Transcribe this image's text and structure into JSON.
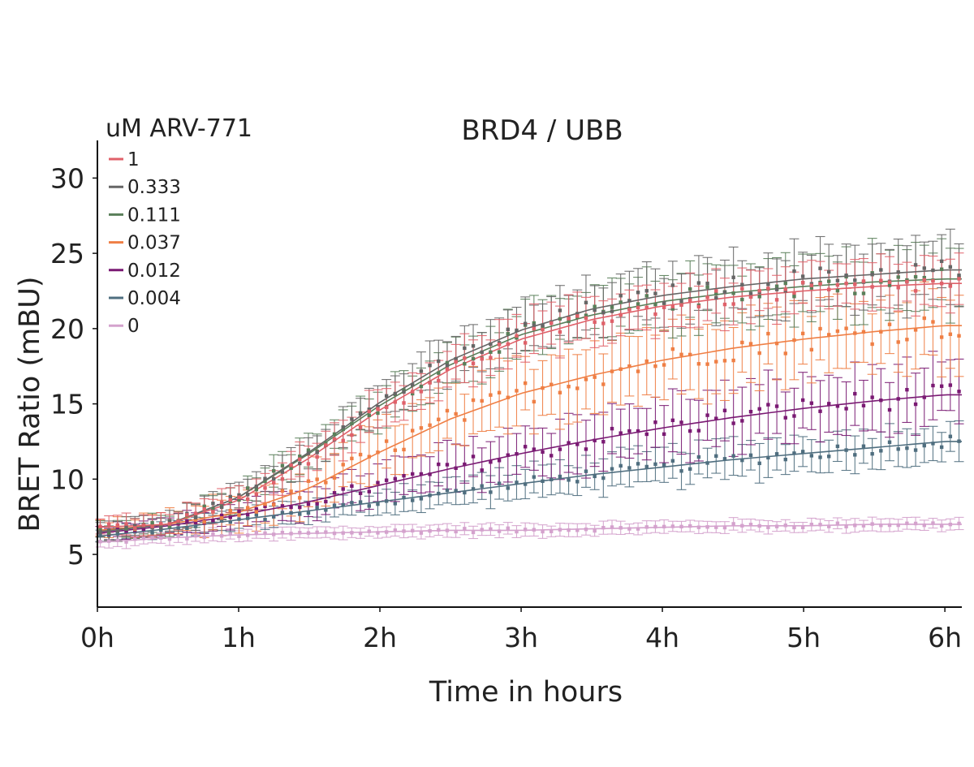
{
  "chart_data": {
    "type": "scatter",
    "title": "BRD4 / UBB",
    "xlabel": "Time in hours",
    "ylabel": "BRET Ratio (mBU)",
    "xlim": [
      0,
      6.12
    ],
    "ylim": [
      1.5,
      32.5
    ],
    "x_ticks": [
      {
        "value": 0,
        "label": "0h"
      },
      {
        "value": 1,
        "label": "1h"
      },
      {
        "value": 2,
        "label": "2h"
      },
      {
        "value": 3,
        "label": "3h"
      },
      {
        "value": 4,
        "label": "4h"
      },
      {
        "value": 5,
        "label": "5h"
      },
      {
        "value": 6,
        "label": "6h"
      }
    ],
    "y_ticks": [
      {
        "value": 5,
        "label": "5"
      },
      {
        "value": 10,
        "label": "10"
      },
      {
        "value": 15,
        "label": "15"
      },
      {
        "value": 20,
        "label": "20"
      },
      {
        "value": 25,
        "label": "25"
      },
      {
        "value": 30,
        "label": "30"
      }
    ],
    "grid": false,
    "legend": {
      "title": "uM ARV-771",
      "position": "top-left"
    },
    "error_bars": true,
    "fit_curves": true,
    "series": [
      {
        "name": "1",
        "color": "#e0616a",
        "fit": [
          6.8,
          7.0,
          8.6,
          11.4,
          14.6,
          17.3,
          19.3,
          20.6,
          21.5,
          22.1,
          22.5,
          22.8,
          23.0
        ],
        "err": [
          0.6,
          0.7,
          0.9,
          1.1,
          1.3,
          1.4,
          1.5,
          1.5,
          1.6,
          1.6,
          1.6,
          1.6,
          1.6
        ]
      },
      {
        "name": "0.333",
        "color": "#666666",
        "fit": [
          6.5,
          7.0,
          8.8,
          11.8,
          15.1,
          17.9,
          19.9,
          21.3,
          22.2,
          22.8,
          23.3,
          23.6,
          23.9
        ],
        "err": [
          0.6,
          0.7,
          0.9,
          1.1,
          1.3,
          1.5,
          1.6,
          1.7,
          1.8,
          1.9,
          2.0,
          2.1,
          2.2
        ]
      },
      {
        "name": "0.111",
        "color": "#5a7f5a",
        "fit": [
          6.5,
          7.0,
          8.8,
          11.7,
          14.9,
          17.6,
          19.6,
          20.9,
          21.8,
          22.4,
          22.8,
          23.1,
          23.3
        ],
        "err": [
          0.6,
          0.7,
          0.9,
          1.1,
          1.3,
          1.5,
          1.6,
          1.7,
          1.8,
          1.9,
          2.0,
          2.1,
          2.2
        ]
      },
      {
        "name": "0.037",
        "color": "#ef7f45",
        "fit": [
          6.6,
          7.0,
          7.8,
          9.4,
          11.8,
          14.0,
          15.7,
          16.9,
          17.9,
          18.7,
          19.3,
          19.8,
          20.2
        ],
        "err": [
          0.5,
          0.8,
          1.2,
          1.6,
          1.9,
          2.1,
          2.2,
          2.3,
          2.3,
          2.4,
          2.4,
          2.4,
          2.5
        ]
      },
      {
        "name": "0.012",
        "color": "#7a1a73",
        "fit": [
          6.4,
          6.9,
          7.6,
          8.5,
          9.6,
          10.7,
          11.7,
          12.6,
          13.4,
          14.1,
          14.7,
          15.2,
          15.6
        ],
        "err": [
          0.4,
          0.6,
          0.8,
          1.0,
          1.3,
          1.5,
          1.7,
          1.8,
          1.9,
          2.0,
          2.0,
          2.0,
          2.0
        ]
      },
      {
        "name": "0.004",
        "color": "#4f6e7f",
        "fit": [
          6.2,
          6.7,
          7.3,
          7.9,
          8.5,
          9.1,
          9.7,
          10.3,
          10.8,
          11.3,
          11.7,
          12.1,
          12.5
        ],
        "err": [
          0.4,
          0.5,
          0.6,
          0.7,
          0.8,
          0.9,
          1.0,
          1.1,
          1.2,
          1.2,
          1.2,
          1.2,
          1.2
        ]
      },
      {
        "name": "0",
        "color": "#d4a2cd",
        "fit": [
          5.8,
          6.1,
          6.3,
          6.4,
          6.5,
          6.6,
          6.6,
          6.7,
          6.8,
          6.9,
          6.9,
          7.0,
          7.0
        ],
        "err": [
          0.4,
          0.4,
          0.4,
          0.4,
          0.4,
          0.4,
          0.4,
          0.4,
          0.4,
          0.4,
          0.4,
          0.4,
          0.4
        ]
      }
    ]
  }
}
